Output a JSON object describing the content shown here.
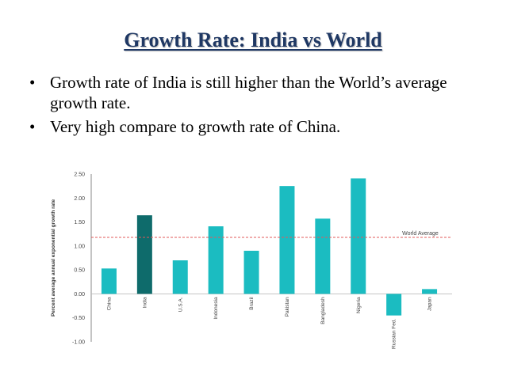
{
  "slide": {
    "title": "Growth Rate: India vs World",
    "bullets": [
      "Growth rate of India is still higher than the World’s average growth rate.",
      "Very high compare to growth rate of China."
    ],
    "bullet_symbol": "•"
  },
  "colors": {
    "bar": "#1bbcc1",
    "highlight_bar": "#0e6b6b",
    "average_line": "#e05a5a",
    "title": "#1f3864"
  },
  "chart_data": {
    "type": "bar",
    "title": "",
    "xlabel": "",
    "ylabel": "Percent average annual exponential growth rate",
    "categories": [
      "China",
      "India",
      "U.S.A.",
      "Indonesia",
      "Brazil",
      "Pakistan",
      "Bangladesh",
      "Nigeria",
      "Russian Fed.",
      "Japan"
    ],
    "values": [
      0.53,
      1.64,
      0.7,
      1.41,
      0.9,
      2.25,
      1.57,
      2.41,
      -0.45,
      0.1
    ],
    "highlight": "India",
    "ylim": [
      -1.0,
      2.5
    ],
    "yticks": [
      "2.50",
      "2.00",
      "1.50",
      "1.00",
      "0.50",
      "0.00",
      "-0.50",
      "-1.00"
    ],
    "ytick_values": [
      2.5,
      2.0,
      1.5,
      1.0,
      0.5,
      0.0,
      -0.5,
      -1.0
    ],
    "reference_line": {
      "label": "World Average",
      "value": 1.18
    }
  }
}
